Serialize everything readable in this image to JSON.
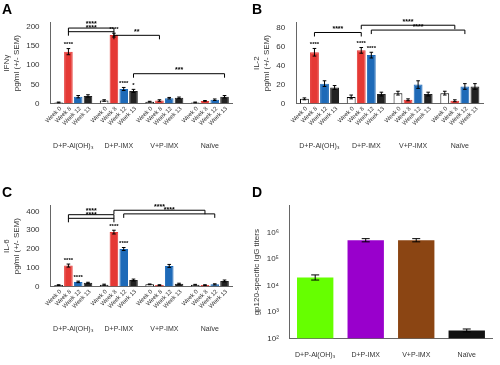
{
  "chart_data": [
    {
      "type": "bar",
      "title": "A",
      "ylabel": "IFNγ\npg/ml (+/- SEM)",
      "categories": [
        "D+P-Al(OH)₃",
        "D+P-IMX",
        "V+P-IMX",
        "Naïve"
      ],
      "series": [
        {
          "name": "Week 0",
          "color": "#ffffff",
          "values": [
            3,
            8,
            5,
            3
          ],
          "errors": [
            1,
            2,
            1,
            1
          ]
        },
        {
          "name": "Week 8",
          "color": "#e53935",
          "values": [
            135,
            178,
            8,
            7
          ],
          "errors": [
            8,
            5,
            2,
            1
          ]
        },
        {
          "name": "Week 12",
          "color": "#1e6ab8",
          "values": [
            18,
            38,
            14,
            10
          ],
          "errors": [
            3,
            4,
            2,
            2
          ]
        },
        {
          "name": "Week 13",
          "color": "#222222",
          "values": [
            20,
            33,
            15,
            18
          ],
          "errors": [
            3,
            4,
            2,
            3
          ]
        }
      ],
      "ylim": [
        0,
        210
      ],
      "yticks": [
        0,
        50,
        100,
        150,
        200
      ],
      "grid": false,
      "annotations": [
        {
          "text": "****",
          "category": "D+P-Al(OH)₃",
          "series": "Week 8"
        },
        {
          "text": "****",
          "category": "D+P-IMX",
          "series": "Week 8"
        },
        {
          "text": "****",
          "category": "D+P-IMX",
          "series": "Week 12"
        },
        {
          "text": "*",
          "category": "D+P-IMX",
          "series": "Week 13"
        },
        {
          "text": "****",
          "from": {
            "category": "D+P-Al(OH)₃",
            "series": "Week 8"
          },
          "to": {
            "category": "D+P-IMX",
            "series": "Week 8"
          },
          "y": 196.35
        },
        {
          "text": "****",
          "from": {
            "category": "D+P-Al(OH)₃",
            "series": "Week 8"
          },
          "to": {
            "category": "D+P-IMX",
            "series": "Week 8"
          },
          "y": 186.9
        },
        {
          "text": "**",
          "from": {
            "category": "D+P-IMX",
            "series": "Week 8"
          },
          "to": {
            "category": "V+P-IMX",
            "series": "Week 8"
          },
          "y": 177.45
        },
        {
          "text": "***",
          "from": {
            "category": "D+P-IMX",
            "series": "Week 13"
          },
          "to": {
            "category": "Naïve",
            "series": "Week 13"
          },
          "y": 77.7
        }
      ]
    },
    {
      "type": "bar",
      "title": "B",
      "ylabel": "IL-2\npg/ml (+/- SEM)",
      "categories": [
        "D+P-Al(OH)₃",
        "D+P-IMX",
        "V+P-IMX",
        "Naïve"
      ],
      "series": [
        {
          "name": "Week 0",
          "color": "#ffffff",
          "values": [
            5,
            7,
            11,
            11
          ],
          "errors": [
            1,
            2,
            2,
            2
          ]
        },
        {
          "name": "Week 8",
          "color": "#e53935",
          "values": [
            54,
            56,
            4,
            3
          ],
          "errors": [
            4,
            3,
            1,
            1
          ]
        },
        {
          "name": "Week 12",
          "color": "#1e6ab8",
          "values": [
            21,
            51,
            20,
            18
          ],
          "errors": [
            3,
            3,
            4,
            3
          ]
        },
        {
          "name": "Week 13",
          "color": "#222222",
          "values": [
            17,
            10,
            10,
            18
          ],
          "errors": [
            2,
            2,
            2,
            3
          ]
        }
      ],
      "ylim": [
        0,
        85
      ],
      "yticks": [
        0,
        20,
        40,
        60,
        80
      ],
      "grid": false,
      "annotations": [
        {
          "text": "****",
          "category": "D+P-Al(OH)₃",
          "series": "Week 8"
        },
        {
          "text": "****",
          "category": "D+P-IMX",
          "series": "Week 8"
        },
        {
          "text": "****",
          "category": "D+P-IMX",
          "series": "Week 12"
        },
        {
          "text": "****",
          "from": {
            "category": "D+P-Al(OH)₃",
            "series": "Week 8"
          },
          "to": {
            "category": "D+P-IMX",
            "series": "Week 8"
          },
          "y": 74.8
        },
        {
          "text": "****",
          "from": {
            "category": "D+P-IMX",
            "series": "Week 8"
          },
          "to": {
            "category": "Naïve",
            "series": "Week 8"
          },
          "y": 82.45
        },
        {
          "text": "****",
          "from": {
            "category": "D+P-IMX",
            "series": "Week 12"
          },
          "to": {
            "category": "Naïve",
            "series": "Week 12"
          },
          "y": 77.35
        }
      ]
    },
    {
      "type": "bar",
      "title": "C",
      "ylabel": "IL-6\npg/ml (+/- SEM)",
      "categories": [
        "D+P-Al(OH)₃",
        "D+P-IMX",
        "V+P-IMX",
        "Naïve"
      ],
      "series": [
        {
          "name": "Week 0",
          "color": "#ffffff",
          "values": [
            8,
            10,
            12,
            10
          ],
          "errors": [
            2,
            3,
            2,
            2
          ]
        },
        {
          "name": "Week 8",
          "color": "#e53935",
          "values": [
            112,
            290,
            8,
            8
          ],
          "errors": [
            8,
            10,
            2,
            2
          ]
        },
        {
          "name": "Week 12",
          "color": "#1e6ab8",
          "values": [
            25,
            200,
            110,
            12
          ],
          "errors": [
            4,
            8,
            8,
            3
          ]
        },
        {
          "name": "Week 13",
          "color": "#222222",
          "values": [
            20,
            35,
            15,
            30
          ],
          "errors": [
            3,
            5,
            3,
            5
          ]
        }
      ],
      "ylim": [
        0,
        430
      ],
      "yticks": [
        0,
        100,
        200,
        300,
        400
      ],
      "grid": false,
      "annotations": [
        {
          "text": "****",
          "category": "D+P-Al(OH)₃",
          "series": "Week 8"
        },
        {
          "text": "****",
          "category": "D+P-Al(OH)₃",
          "series": "Week 12"
        },
        {
          "text": "****",
          "category": "D+P-IMX",
          "series": "Week 8"
        },
        {
          "text": "****",
          "category": "D+P-IMX",
          "series": "Week 12"
        },
        {
          "text": "****",
          "from": {
            "category": "D+P-Al(OH)₃",
            "series": "Week 8"
          },
          "to": {
            "category": "D+P-IMX",
            "series": "Week 8"
          },
          "y": 382.7
        },
        {
          "text": "****",
          "from": {
            "category": "D+P-Al(OH)₃",
            "series": "Week 8"
          },
          "to": {
            "category": "D+P-IMX",
            "series": "Week 8"
          },
          "y": 363.35
        },
        {
          "text": "****",
          "from": {
            "category": "D+P-IMX",
            "series": "Week 8"
          },
          "to": {
            "category": "Naïve",
            "series": "Week 8"
          },
          "y": 406.35
        },
        {
          "text": "****",
          "from": {
            "category": "D+P-IMX",
            "series": "Week 12"
          },
          "to": {
            "category": "Naïve",
            "series": "Week 12"
          },
          "y": 387
        }
      ]
    },
    {
      "type": "bar",
      "title": "D",
      "ylabel": "gp120-specific IgG titers",
      "categories": [
        "D+P-Al(OH)₃",
        "D+P-IMX",
        "V+P-IMX",
        "Naïve"
      ],
      "values": [
        20000,
        500000,
        500000,
        200
      ],
      "colors": [
        "#66ff00",
        "#9900cc",
        "#8B4513",
        "#111111"
      ],
      "errors_up": [
        5000,
        80000,
        80000,
        30
      ],
      "errors_down": [
        4000,
        60000,
        60000,
        20
      ],
      "log": "y",
      "ylim": [
        100,
        10000000
      ],
      "yticks": [
        {
          "value": 100,
          "label": "10²"
        },
        {
          "value": 1000,
          "label": "10³"
        },
        {
          "value": 10000,
          "label": "10⁴"
        },
        {
          "value": 100000,
          "label": "10⁵"
        },
        {
          "value": 1000000,
          "label": "10⁶"
        }
      ],
      "grid": false
    }
  ]
}
